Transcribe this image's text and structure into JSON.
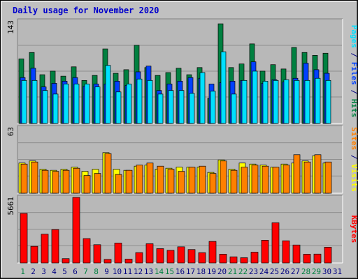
{
  "title": "Daily usage for November 2020",
  "colors": {
    "background": "#c0c0c0",
    "plot_bg": "#b8b8b8",
    "title": "#0000cc",
    "hits": "#008040",
    "files": "#0040ff",
    "pages": "#00e0ff",
    "visits": "#ffff00",
    "sites": "#ff8000",
    "kbytes": "#ff0000",
    "weekend_day": "#008040",
    "weekday_day": "#000080"
  },
  "chart_data": [
    {
      "type": "bar",
      "panel": "top",
      "x": [
        1,
        2,
        3,
        4,
        5,
        6,
        7,
        8,
        9,
        10,
        11,
        12,
        13,
        14,
        15,
        16,
        17,
        18,
        19,
        20,
        21,
        22,
        23,
        24,
        25,
        26,
        27,
        28,
        29,
        30,
        31
      ],
      "y_max_label": "143",
      "ylim": [
        0,
        143
      ],
      "series": [
        {
          "name": "Hits",
          "values": [
            90,
            99,
            68,
            73,
            66,
            79,
            60,
            67,
            104,
            70,
            75,
            109,
            78,
            67,
            71,
            77,
            68,
            78,
            35,
            139,
            78,
            83,
            111,
            73,
            82,
            76,
            106,
            99,
            95,
            98,
            0
          ]
        },
        {
          "name": "Files",
          "values": [
            64,
            77,
            51,
            56,
            59,
            64,
            52,
            55,
            55,
            59,
            53,
            72,
            80,
            46,
            55,
            59,
            64,
            63,
            55,
            57,
            59,
            60,
            86,
            56,
            61,
            58,
            63,
            84,
            75,
            70,
            0
          ]
        },
        {
          "name": "Pages",
          "values": [
            60,
            60,
            46,
            41,
            55,
            55,
            55,
            51,
            81,
            44,
            55,
            62,
            60,
            41,
            46,
            46,
            42,
            71,
            45,
            100,
            41,
            60,
            73,
            59,
            60,
            61,
            60,
            60,
            63,
            60,
            0
          ]
        }
      ],
      "legend": [
        "Pages",
        "Files",
        "Hits"
      ]
    },
    {
      "type": "bar",
      "panel": "middle",
      "x": [
        1,
        2,
        3,
        4,
        5,
        6,
        7,
        8,
        9,
        10,
        11,
        12,
        13,
        14,
        15,
        16,
        17,
        18,
        19,
        20,
        21,
        22,
        23,
        24,
        25,
        26,
        27,
        28,
        29,
        30,
        31
      ],
      "y_max_label": "63",
      "ylim": [
        0,
        63
      ],
      "series": [
        {
          "name": "Visits",
          "values": [
            29,
            31,
            23,
            22,
            23,
            25,
            21,
            23,
            39,
            23,
            22,
            26,
            27,
            23,
            24,
            25,
            25,
            25,
            20,
            32,
            23,
            29,
            28,
            27,
            25,
            28,
            29,
            31,
            36,
            29,
            0
          ]
        },
        {
          "name": "Sites",
          "values": [
            28,
            30,
            22,
            21,
            22,
            24,
            17,
            19,
            38,
            18,
            22,
            27,
            29,
            26,
            23,
            21,
            25,
            26,
            19,
            31,
            22,
            25,
            27,
            26,
            25,
            27,
            37,
            30,
            37,
            30,
            0
          ]
        }
      ],
      "legend": [
        "Sites",
        "Visits"
      ]
    },
    {
      "type": "bar",
      "panel": "bottom",
      "x": [
        1,
        2,
        3,
        4,
        5,
        6,
        7,
        8,
        9,
        10,
        11,
        12,
        13,
        14,
        15,
        16,
        17,
        18,
        19,
        20,
        21,
        22,
        23,
        24,
        25,
        26,
        27,
        28,
        29,
        30,
        31
      ],
      "y_max_label": "5661",
      "ylim": [
        0,
        5661
      ],
      "series": [
        {
          "name": "KBytes",
          "values": [
            4280,
            1437,
            2485,
            2884,
            376,
            5661,
            2106,
            1577,
            307,
            1718,
            332,
            893,
            1661,
            1236,
            1089,
            1394,
            1159,
            888,
            1860,
            760,
            531,
            452,
            932,
            1964,
            3474,
            1915,
            1552,
            754,
            768,
            1361,
            0
          ]
        }
      ],
      "legend": [
        "KBytes"
      ]
    }
  ],
  "x_axis": {
    "labels": [
      "1",
      "2",
      "3",
      "4",
      "5",
      "6",
      "7",
      "8",
      "9",
      "10",
      "11",
      "12",
      "13",
      "14",
      "15",
      "16",
      "17",
      "18",
      "19",
      "20",
      "21",
      "22",
      "23",
      "24",
      "25",
      "26",
      "27",
      "28",
      "29",
      "30",
      "31"
    ],
    "weekend_days": [
      1,
      7,
      8,
      14,
      15,
      21,
      22,
      28,
      29
    ]
  },
  "right_labels": {
    "top": [
      {
        "text": "Pages",
        "color_key": "pages"
      },
      {
        "text": " / ",
        "color_key": "weekday_day"
      },
      {
        "text": "Files",
        "color_key": "files"
      },
      {
        "text": " / ",
        "color_key": "weekday_day"
      },
      {
        "text": "Hits",
        "color_key": "hits"
      }
    ],
    "middle": [
      {
        "text": "Sites",
        "color_key": "sites"
      },
      {
        "text": " / ",
        "color_key": "weekday_day"
      },
      {
        "text": "Visits",
        "color_key": "visits"
      }
    ],
    "bottom": [
      {
        "text": "KBytes",
        "color_key": "kbytes"
      }
    ]
  }
}
